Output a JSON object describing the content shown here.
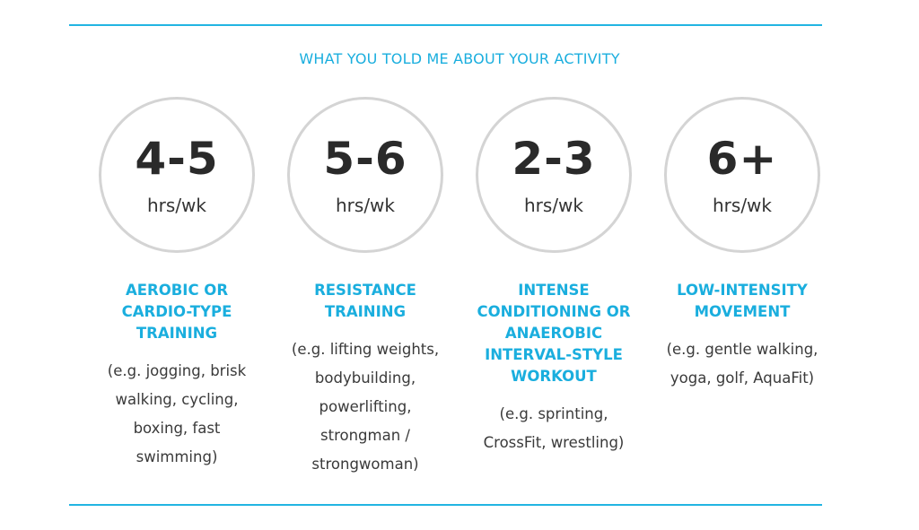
{
  "heading": "WHAT YOU TOLD ME ABOUT YOUR ACTIVITY",
  "colors": {
    "accent": "#22b5e2",
    "circle_border": "#d4d4d4",
    "value_text": "#2a2a2a",
    "body_text": "#3a3a3a"
  },
  "activities": [
    {
      "value": "4-5",
      "unit": "hrs/wk",
      "category_lines": [
        "AEROBIC OR",
        "CARDIO-TYPE",
        "TRAINING"
      ],
      "example_lines": [
        "(e.g. jogging, brisk",
        "walking, cycling,",
        "boxing, fast",
        "swimming)"
      ]
    },
    {
      "value": "5-6",
      "unit": "hrs/wk",
      "category_lines": [
        "RESISTANCE",
        "TRAINING"
      ],
      "example_lines": [
        "(e.g. lifting weights,",
        "bodybuilding,",
        "powerlifting,",
        "strongman /",
        "strongwoman)"
      ]
    },
    {
      "value": "2-3",
      "unit": "hrs/wk",
      "category_lines": [
        "INTENSE",
        "CONDITIONING OR",
        "ANAEROBIC",
        "INTERVAL-STYLE",
        "WORKOUT"
      ],
      "example_lines": [
        "(e.g. sprinting,",
        "CrossFit, wrestling)"
      ]
    },
    {
      "value": "6+",
      "unit": "hrs/wk",
      "category_lines": [
        "LOW-INTENSITY",
        "MOVEMENT"
      ],
      "example_lines": [
        "(e.g. gentle walking,",
        "yoga, golf, AquaFit)"
      ]
    }
  ]
}
